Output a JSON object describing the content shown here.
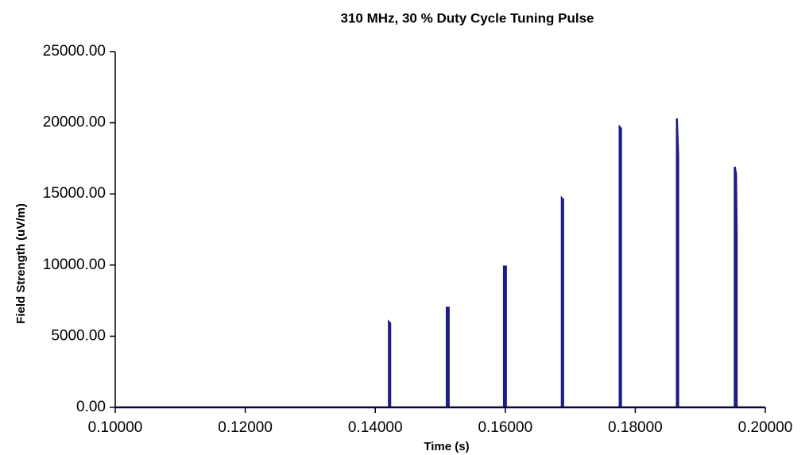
{
  "chart_data": {
    "type": "line",
    "title": "310 MHz, 30 % Duty Cycle Tuning Pulse",
    "x_label": "Time (s)",
    "y_label": "Field Strength (uV/m)",
    "color": "#1c1c8a",
    "x": [
      0.1,
      0.1421,
      0.1421,
      0.1423,
      0.1423,
      0.151,
      0.151,
      0.1513,
      0.1513,
      0.1598,
      0.1598,
      0.1601,
      0.1601,
      0.1687,
      0.1687,
      0.1689,
      0.1689,
      0.1776,
      0.1776,
      0.1778,
      0.1778,
      0.1864,
      0.1864,
      0.1866,
      0.1866,
      0.1953,
      0.1953,
      0.1955,
      0.1956,
      0.1956,
      0.2
    ],
    "values": [
      0,
      0,
      6000,
      5900,
      0,
      0,
      7000,
      7000,
      0,
      0,
      9900,
      9900,
      0,
      0,
      14700,
      14600,
      0,
      0,
      19700,
      19600,
      0,
      0,
      20300,
      17700,
      0,
      0,
      16900,
      16400,
      12000,
      0,
      0
    ],
    "xlim": [
      0.1,
      0.2
    ],
    "xticks": [
      {
        "value": 0.1,
        "label": "0.10000"
      },
      {
        "value": 0.12,
        "label": "0.12000"
      },
      {
        "value": 0.14,
        "label": "0.14000"
      },
      {
        "value": 0.16,
        "label": "0.16000"
      },
      {
        "value": 0.18,
        "label": "0.18000"
      },
      {
        "value": 0.2,
        "label": "0.20000"
      }
    ],
    "ylim": [
      0,
      25000
    ],
    "yticks": [
      {
        "value": 0,
        "label": "0.00"
      },
      {
        "value": 5000,
        "label": "5000.00"
      },
      {
        "value": 10000,
        "label": "10000.00"
      },
      {
        "value": 15000,
        "label": "15000.00"
      },
      {
        "value": 20000,
        "label": "20000.00"
      },
      {
        "value": 25000,
        "label": "25000.00"
      }
    ],
    "grid": false
  }
}
